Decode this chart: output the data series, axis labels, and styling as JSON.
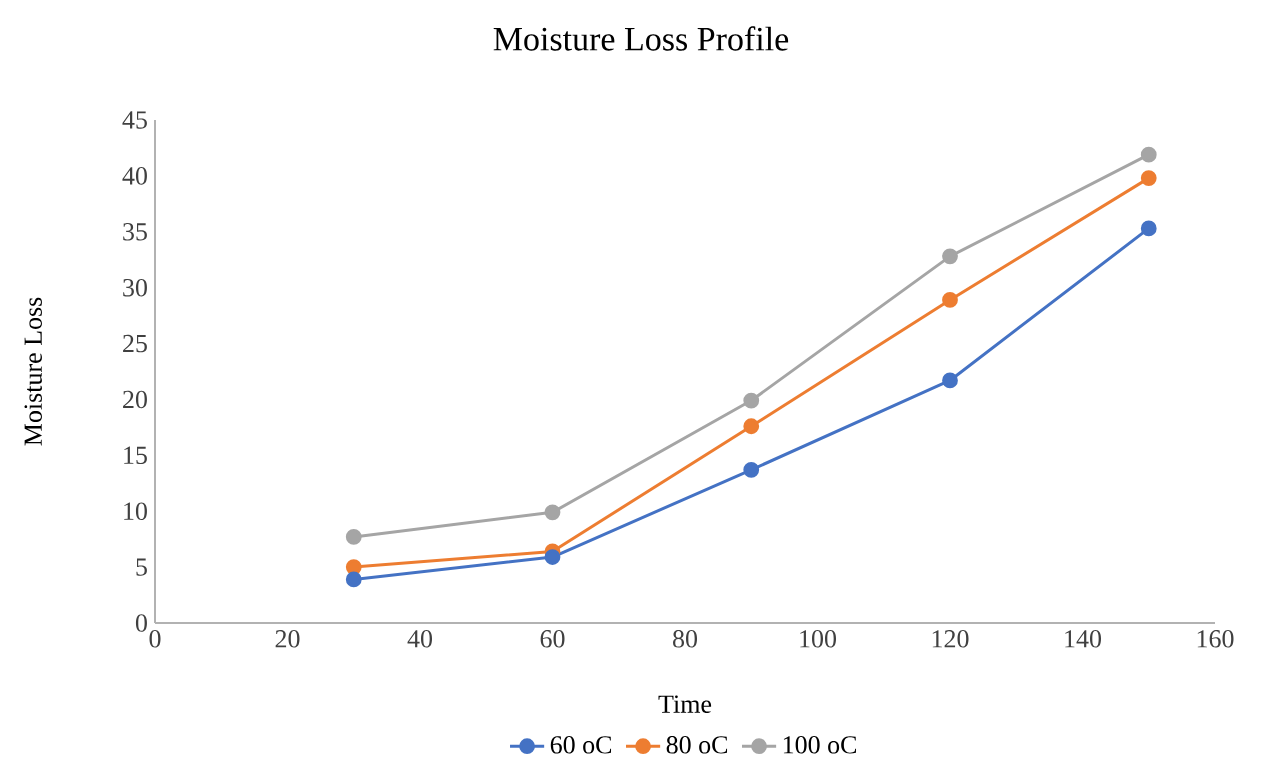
{
  "chart_data": {
    "type": "line",
    "title": "Moisture Loss Profile",
    "xlabel": "Time",
    "ylabel": "Moisture Loss",
    "x": [
      30,
      60,
      90,
      120,
      150
    ],
    "series": [
      {
        "name": "60 oC",
        "color": "#4472c4",
        "values": [
          3.9,
          5.9,
          13.7,
          21.7,
          35.3
        ]
      },
      {
        "name": "80 oC",
        "color": "#ed7d31",
        "values": [
          5.0,
          6.4,
          17.6,
          28.9,
          39.8
        ]
      },
      {
        "name": "100 oC",
        "color": "#a5a5a5",
        "values": [
          7.7,
          9.9,
          19.9,
          32.8,
          41.9
        ]
      }
    ],
    "xlim": [
      0,
      160
    ],
    "xticks": [
      0,
      20,
      40,
      60,
      80,
      100,
      120,
      140,
      160
    ],
    "ylim": [
      0,
      45
    ],
    "yticks": [
      0,
      5,
      10,
      15,
      20,
      25,
      30,
      35,
      40,
      45
    ],
    "grid": false,
    "legend": "bottom",
    "marker": "circle",
    "line_style": "solid"
  }
}
